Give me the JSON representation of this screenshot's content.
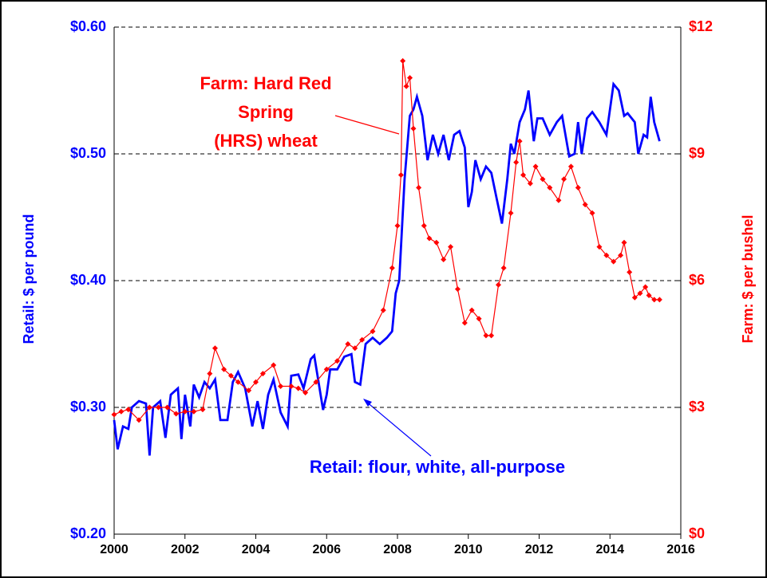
{
  "chart_data": {
    "type": "line",
    "annotations": [
      "Farm: Hard Red",
      "Spring",
      "(HRS) wheat",
      "Retail: flour, white, all-purpose"
    ],
    "ylabel": "Retail: $ per pound",
    "y2label": "Farm: $ per bushel",
    "xlim": [
      2000,
      2016
    ],
    "xticks": [
      2000,
      2002,
      2004,
      2006,
      2008,
      2010,
      2012,
      2014,
      2016
    ],
    "ylim": [
      0.2,
      0.6
    ],
    "yticks": [
      {
        "value": 0.2,
        "label": "$0.20"
      },
      {
        "value": 0.3,
        "label": "$0.30"
      },
      {
        "value": 0.4,
        "label": "$0.40"
      },
      {
        "value": 0.5,
        "label": "$0.50"
      },
      {
        "value": 0.6,
        "label": "$0.60"
      }
    ],
    "y2lim": [
      0,
      12
    ],
    "y2ticks": [
      {
        "value": 0,
        "label": "$0"
      },
      {
        "value": 3,
        "label": "$3"
      },
      {
        "value": 6,
        "label": "$6"
      },
      {
        "value": 9,
        "label": "$9"
      },
      {
        "value": 12,
        "label": "$12"
      }
    ],
    "grid": true,
    "series": [
      {
        "name": "Retail: flour, white, all-purpose",
        "color": "#0000ff",
        "axis": "y",
        "markers": false,
        "x": [
          2000.0,
          2000.1,
          2000.25,
          2000.4,
          2000.5,
          2000.7,
          2000.9,
          2001.0,
          2001.1,
          2001.3,
          2001.45,
          2001.6,
          2001.8,
          2001.9,
          2002.0,
          2002.15,
          2002.25,
          2002.4,
          2002.55,
          2002.7,
          2002.85,
          2003.0,
          2003.2,
          2003.35,
          2003.5,
          2003.7,
          2003.9,
          2004.05,
          2004.2,
          2004.35,
          2004.5,
          2004.7,
          2004.9,
          2005.0,
          2005.2,
          2005.35,
          2005.55,
          2005.65,
          2005.9,
          2006.0,
          2006.1,
          2006.3,
          2006.5,
          2006.7,
          2006.8,
          2006.95,
          2007.1,
          2007.3,
          2007.5,
          2007.7,
          2007.85,
          2007.95,
          2008.05,
          2008.2,
          2008.35,
          2008.45,
          2008.55,
          2008.7,
          2008.85,
          2009.0,
          2009.15,
          2009.3,
          2009.45,
          2009.6,
          2009.75,
          2009.9,
          2010.0,
          2010.1,
          2010.2,
          2010.35,
          2010.5,
          2010.65,
          2010.8,
          2010.95,
          2011.1,
          2011.2,
          2011.3,
          2011.45,
          2011.6,
          2011.7,
          2011.85,
          2011.95,
          2012.1,
          2012.3,
          2012.5,
          2012.65,
          2012.85,
          2013.0,
          2013.1,
          2013.2,
          2013.35,
          2013.5,
          2013.7,
          2013.9,
          2014.1,
          2014.25,
          2014.4,
          2014.5,
          2014.7,
          2014.8,
          2014.95,
          2015.05,
          2015.15,
          2015.25,
          2015.4
        ],
        "values": [
          0.29,
          0.267,
          0.285,
          0.283,
          0.3,
          0.305,
          0.303,
          0.262,
          0.3,
          0.305,
          0.276,
          0.31,
          0.315,
          0.275,
          0.31,
          0.285,
          0.318,
          0.308,
          0.32,
          0.315,
          0.322,
          0.29,
          0.29,
          0.32,
          0.328,
          0.315,
          0.285,
          0.305,
          0.283,
          0.31,
          0.322,
          0.296,
          0.285,
          0.325,
          0.326,
          0.315,
          0.338,
          0.341,
          0.298,
          0.31,
          0.33,
          0.33,
          0.34,
          0.342,
          0.32,
          0.318,
          0.35,
          0.355,
          0.35,
          0.355,
          0.36,
          0.39,
          0.4,
          0.48,
          0.53,
          0.535,
          0.545,
          0.53,
          0.495,
          0.515,
          0.5,
          0.515,
          0.495,
          0.515,
          0.518,
          0.505,
          0.458,
          0.47,
          0.495,
          0.48,
          0.49,
          0.485,
          0.465,
          0.445,
          0.48,
          0.508,
          0.5,
          0.525,
          0.535,
          0.55,
          0.51,
          0.528,
          0.528,
          0.515,
          0.525,
          0.53,
          0.498,
          0.5,
          0.525,
          0.5,
          0.528,
          0.533,
          0.525,
          0.515,
          0.555,
          0.55,
          0.53,
          0.532,
          0.525,
          0.5,
          0.515,
          0.513,
          0.545,
          0.525,
          0.51
        ]
      },
      {
        "name": "Farm: Hard Red Spring (HRS) wheat",
        "color": "#ff0000",
        "axis": "y2",
        "markers": true,
        "x": [
          2000.0,
          2000.2,
          2000.4,
          2000.7,
          2001.0,
          2001.25,
          2001.5,
          2001.75,
          2002.0,
          2002.25,
          2002.5,
          2002.7,
          2002.85,
          2003.1,
          2003.3,
          2003.5,
          2003.8,
          2004.0,
          2004.2,
          2004.5,
          2004.7,
          2005.0,
          2005.2,
          2005.4,
          2005.7,
          2006.0,
          2006.3,
          2006.6,
          2006.8,
          2007.0,
          2007.3,
          2007.6,
          2007.85,
          2008.0,
          2008.1,
          2008.15,
          2008.25,
          2008.35,
          2008.45,
          2008.6,
          2008.75,
          2008.9,
          2009.1,
          2009.3,
          2009.5,
          2009.7,
          2009.9,
          2010.1,
          2010.3,
          2010.5,
          2010.65,
          2010.85,
          2011.0,
          2011.2,
          2011.35,
          2011.45,
          2011.55,
          2011.75,
          2011.9,
          2012.1,
          2012.3,
          2012.55,
          2012.7,
          2012.9,
          2013.1,
          2013.3,
          2013.5,
          2013.7,
          2013.9,
          2014.1,
          2014.3,
          2014.4,
          2014.55,
          2014.7,
          2014.85,
          2015.0,
          2015.1,
          2015.25,
          2015.4
        ],
        "values": [
          2.83,
          2.9,
          2.95,
          2.7,
          3.0,
          3.0,
          3.0,
          2.85,
          2.9,
          2.9,
          2.95,
          3.8,
          4.4,
          3.9,
          3.75,
          3.6,
          3.4,
          3.6,
          3.8,
          4.0,
          3.5,
          3.5,
          3.45,
          3.35,
          3.6,
          3.9,
          4.1,
          4.5,
          4.4,
          4.6,
          4.8,
          5.3,
          6.3,
          7.3,
          8.5,
          11.2,
          10.6,
          10.8,
          9.6,
          8.2,
          7.3,
          7.0,
          6.9,
          6.5,
          6.8,
          5.8,
          5.0,
          5.3,
          5.1,
          4.7,
          4.7,
          5.9,
          6.3,
          7.6,
          8.8,
          9.3,
          8.5,
          8.3,
          8.7,
          8.4,
          8.2,
          7.9,
          8.4,
          8.7,
          8.2,
          7.8,
          7.6,
          6.8,
          6.6,
          6.45,
          6.6,
          6.9,
          6.2,
          5.6,
          5.7,
          5.85,
          5.65,
          5.55,
          5.55
        ]
      }
    ]
  }
}
